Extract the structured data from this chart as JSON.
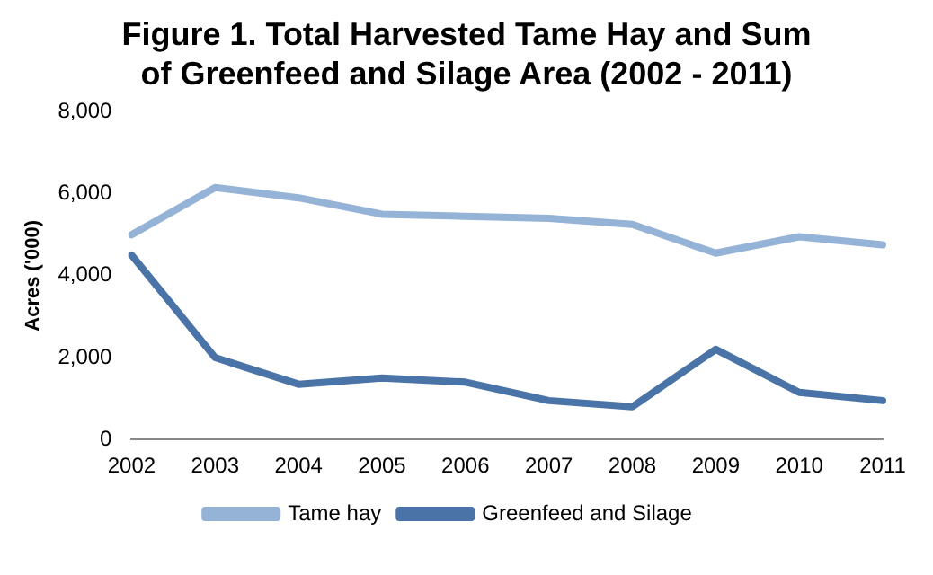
{
  "chart_data": {
    "type": "line",
    "title": "Figure 1. Total Harvested Tame Hay and Sum of Greenfeed and Silage Area (2002 - 2011)",
    "ylabel": "Acres ('000)",
    "categories": [
      "2002",
      "2003",
      "2004",
      "2005",
      "2006",
      "2007",
      "2008",
      "2009",
      "2010",
      "2011"
    ],
    "series": [
      {
        "name": "Tame hay",
        "color": "#95b3d7",
        "values": [
          5000,
          6150,
          5900,
          5500,
          5450,
          5400,
          5250,
          4550,
          4950,
          4750
        ]
      },
      {
        "name": "Greenfeed and Silage",
        "color": "#4a74a8",
        "values": [
          4500,
          2000,
          1350,
          1500,
          1400,
          950,
          800,
          2200,
          1150,
          950
        ]
      }
    ],
    "ylim": [
      0,
      8000
    ],
    "yticks": [
      {
        "value": 0,
        "label": "0"
      },
      {
        "value": 2000,
        "label": "2,000"
      },
      {
        "value": 4000,
        "label": "4,000"
      },
      {
        "value": 6000,
        "label": "6,000"
      },
      {
        "value": 8000,
        "label": "8,000"
      }
    ],
    "legend": "bottom",
    "marker": "none",
    "line_style": "solid"
  }
}
